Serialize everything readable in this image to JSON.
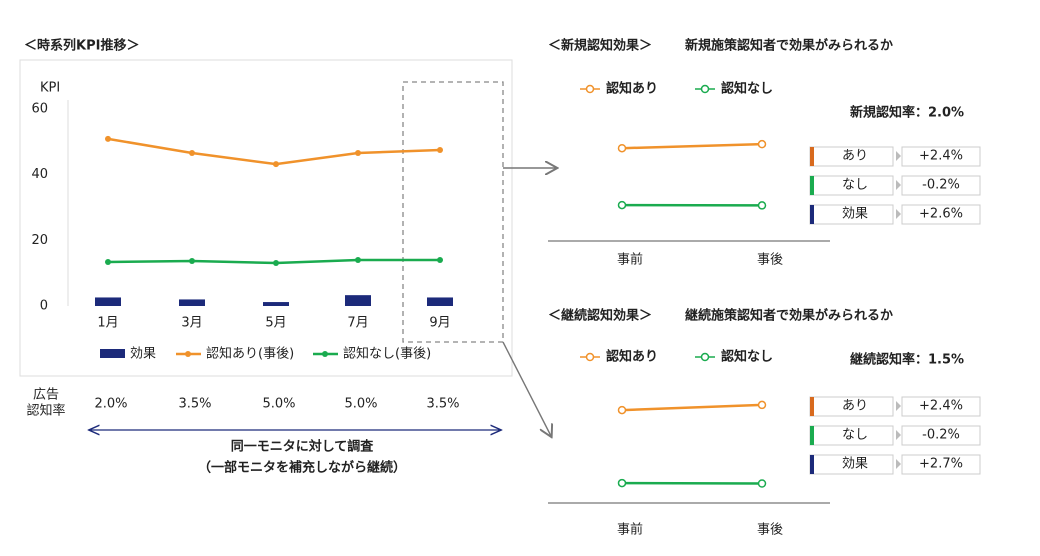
{
  "chart_data": [
    {
      "type": "combo",
      "title": "＜時系列KPI推移＞",
      "y_label": "KPI",
      "categories": [
        "1月",
        "3月",
        "5月",
        "7月",
        "9月"
      ],
      "ylim": [
        0,
        60
      ],
      "yticks": [
        0,
        20,
        40,
        60
      ],
      "grid": false,
      "series": [
        {
          "name": "効果",
          "type": "bar",
          "color": "#1c2a7a",
          "values": [
            2.6,
            2.0,
            1.2,
            3.3,
            2.6
          ]
        },
        {
          "name": "認知あり(事後)",
          "type": "line",
          "color": "#f0922b",
          "values": [
            50.9,
            46.6,
            43.2,
            46.6,
            47.5
          ]
        },
        {
          "name": "認知なし(事後)",
          "type": "line",
          "color": "#1aab4f",
          "values": [
            13.4,
            13.7,
            13.1,
            14.0,
            14.0
          ]
        }
      ],
      "ad_rates": {
        "label": [
          "広告",
          "認知率"
        ],
        "values": [
          2.0,
          3.5,
          5.0,
          5.0,
          3.5
        ],
        "value_labels": [
          "2.0%",
          "3.5%",
          "5.0%",
          "5.0%",
          "3.5%"
        ]
      },
      "caption": [
        "同一モニタに対して調査",
        "（一部モニタを補充しながら継続）"
      ]
    },
    {
      "type": "line",
      "title": "＜新規認知効果＞",
      "subtitle": "新規施策認知者で効果がみられるか",
      "categories": [
        "事前",
        "事後"
      ],
      "ylim": [
        0,
        60
      ],
      "series": [
        {
          "name": "認知あり",
          "color": "#f0922b",
          "values": [
            48.0,
            50.4
          ]
        },
        {
          "name": "認知なし",
          "color": "#1aab4f",
          "values": [
            14.2,
            14.0
          ]
        }
      ],
      "rate": "新規認知率：2.0%",
      "effects": {
        "labels": [
          "あり",
          "なし",
          "効果"
        ],
        "colors": [
          "#d86a1e",
          "#1aab4f",
          "#1c2a7a"
        ],
        "values": [
          2.4,
          -0.2,
          2.6
        ],
        "value_labels": [
          "+2.4%",
          "-0.2%",
          "+2.6%"
        ]
      }
    },
    {
      "type": "line",
      "title": "＜継続認知効果＞",
      "subtitle": "継続施策認知者で効果がみられるか",
      "categories": [
        "事前",
        "事後"
      ],
      "ylim": [
        0,
        60
      ],
      "series": [
        {
          "name": "認知あり",
          "color": "#f0922b",
          "values": [
            47.9,
            50.3
          ]
        },
        {
          "name": "認知なし",
          "color": "#1aab4f",
          "values": [
            14.1,
            13.9
          ]
        }
      ],
      "rate": "継続認知率：1.5%",
      "effects": {
        "labels": [
          "あり",
          "なし",
          "効果"
        ],
        "colors": [
          "#d86a1e",
          "#1aab4f",
          "#1c2a7a"
        ],
        "values": [
          2.4,
          -0.2,
          2.7
        ],
        "value_labels": [
          "+2.4%",
          "-0.2%",
          "+2.7%"
        ]
      }
    }
  ]
}
